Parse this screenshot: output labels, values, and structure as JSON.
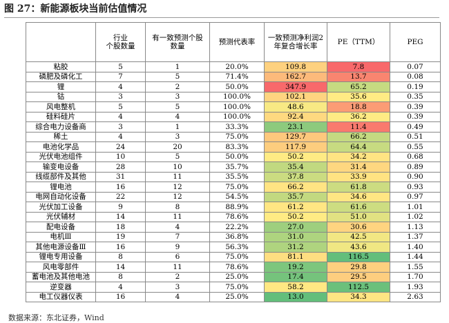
{
  "header": {
    "title": "图 27：新能源板块当前估值情况"
  },
  "table": {
    "columns": [
      "",
      "行业\n个股数量",
      "有一致预测个股\n数量",
      "预测代表率",
      "一致预测净利润2\n年复合增长率",
      "PE（TTM）",
      "PEG"
    ],
    "heat_colors": {
      "low": "#63be7b",
      "mid": "#ffeb84",
      "high": "#f8696b"
    },
    "rows": [
      [
        "粘胶",
        "5",
        "1",
        "20.0%",
        "109.8",
        "7.8",
        "0.07"
      ],
      [
        "磷肥及磷化工",
        "7",
        "5",
        "71.4%",
        "162.7",
        "13.7",
        "0.08"
      ],
      [
        "锂",
        "4",
        "2",
        "50.0%",
        "347.9",
        "65.2",
        "0.19"
      ],
      [
        "钴",
        "3",
        "3",
        "100.0%",
        "102.1",
        "35.6",
        "0.35"
      ],
      [
        "风电整机",
        "5",
        "5",
        "100.0%",
        "48.6",
        "18.8",
        "0.39"
      ],
      [
        "硅料硅片",
        "4",
        "4",
        "100.0%",
        "92.4",
        "36.2",
        "0.39"
      ],
      [
        "综合电力设备商",
        "3",
        "1",
        "33.3%",
        "23.1",
        "11.4",
        "0.49"
      ],
      [
        "稀土",
        "4",
        "3",
        "75.0%",
        "129.7",
        "66.2",
        "0.51"
      ],
      [
        "电池化学品",
        "24",
        "20",
        "83.3%",
        "117.9",
        "64.4",
        "0.55"
      ],
      [
        "光伏电池组件",
        "10",
        "5",
        "50.0%",
        "50.2",
        "34.2",
        "0.68"
      ],
      [
        "输变电设备",
        "28",
        "10",
        "35.7%",
        "35.4",
        "31.4",
        "0.89"
      ],
      [
        "线缆部件及其他",
        "31",
        "11",
        "35.5%",
        "37.8",
        "33.9",
        "0.90"
      ],
      [
        "锂电池",
        "16",
        "12",
        "75.0%",
        "66.2",
        "61.8",
        "0.93"
      ],
      [
        "电网自动化设备",
        "22",
        "12",
        "54.5%",
        "35.7",
        "34.6",
        "0.97"
      ],
      [
        "光伏加工设备",
        "9",
        "8",
        "88.9%",
        "61.2",
        "61.6",
        "1.01"
      ],
      [
        "光伏辅材",
        "14",
        "11",
        "78.6%",
        "50.2",
        "51.0",
        "1.02"
      ],
      [
        "配电设备",
        "18",
        "4",
        "22.2%",
        "27.0",
        "30.6",
        "1.13"
      ],
      [
        "电机Ⅲ",
        "19",
        "7",
        "36.8%",
        "31.0",
        "42.5",
        "1.37"
      ],
      [
        "其他电源设备Ⅲ",
        "16",
        "9",
        "56.3%",
        "31.2",
        "43.6",
        "1.40"
      ],
      [
        "锂电专用设备",
        "8",
        "6",
        "75.0%",
        "81.1",
        "116.5",
        "1.44"
      ],
      [
        "风电零部件",
        "14",
        "11",
        "78.6%",
        "19.2",
        "29.8",
        "1.55"
      ],
      [
        "蓄电池及其他电池",
        "8",
        "2",
        "25.0%",
        "17.4",
        "29.5",
        "1.70"
      ],
      [
        "逆变器",
        "4",
        "3",
        "75.0%",
        "58.2",
        "112.5",
        "1.93"
      ],
      [
        "电工仪器仪表",
        "16",
        "4",
        "25.0%",
        "13.0",
        "34.3",
        "2.63"
      ]
    ]
  },
  "footer": {
    "source": "数据来源：东北证券，Wind"
  }
}
